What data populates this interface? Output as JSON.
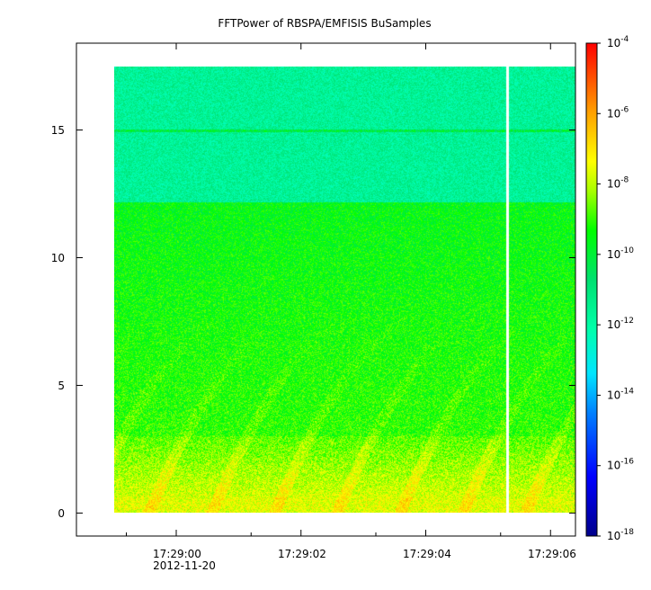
{
  "chart_data": {
    "type": "heatmap",
    "title": "FFTPower of RBSPA/EMFISIS  BuSamples",
    "xlabel": "",
    "ylabel": "",
    "x_ticks": [
      {
        "time": "17:29:00",
        "date": "2012-11-20"
      },
      {
        "time": "17:29:02",
        "date": ""
      },
      {
        "time": "17:29:04",
        "date": ""
      },
      {
        "time": "17:29:06",
        "date": ""
      }
    ],
    "x_minor_tick_seconds": [
      58.4,
      59.2,
      61.2,
      63.2,
      65.2
    ],
    "xlim_seconds_after_17_28": [
      58.4,
      66.4
    ],
    "data_time_range_seconds_after_17_28": [
      59.0,
      66.4
    ],
    "data_gap_seconds_after_17_28": 65.3,
    "y_ticks": [
      0,
      5,
      10,
      15
    ],
    "ylim": [
      -0.9,
      18.4
    ],
    "frequency_range": [
      0,
      17.5
    ],
    "noise_floor_step_frequency": 12.2,
    "line_feature_frequency": 15.0,
    "colorbar": {
      "scale": "log",
      "range": [
        1e-18,
        0.0001
      ],
      "colormap": [
        "#00008b",
        "#0000ff",
        "#00bfff",
        "#00ffcc",
        "#00e060",
        "#00ff00",
        "#c0ff00",
        "#ffff00",
        "#ffa000",
        "#ff0000"
      ],
      "tick_labels": [
        {
          "base": "10",
          "exp": "-4"
        },
        {
          "base": "10",
          "exp": "-6"
        },
        {
          "base": "10",
          "exp": "-8"
        },
        {
          "base": "10",
          "exp": "-10"
        },
        {
          "base": "10",
          "exp": "-12"
        },
        {
          "base": "10",
          "exp": "-14"
        },
        {
          "base": "10",
          "exp": "-16"
        },
        {
          "base": "10",
          "exp": "-18"
        }
      ]
    },
    "grid": false
  }
}
